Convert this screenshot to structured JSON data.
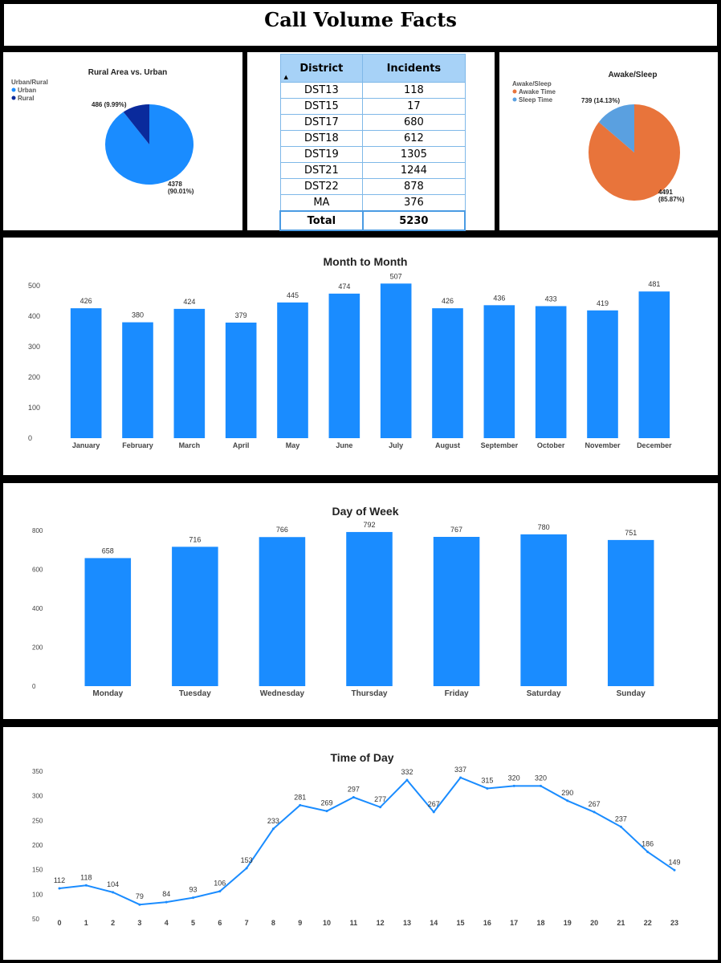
{
  "page": {
    "title": "Call Volume Facts"
  },
  "colors": {
    "bar": "#1a8cff",
    "urban": "#1a8cff",
    "rural": "#0a2a9c",
    "awake": "#e8743b",
    "sleep": "#5aa0e0",
    "line": "#1a8cff"
  },
  "district_table": {
    "headers": {
      "district": "District",
      "incidents": "Incidents"
    },
    "sort_icon": "sort-ascending-icon",
    "rows": [
      {
        "district": "DST13",
        "incidents": "118"
      },
      {
        "district": "DST15",
        "incidents": "17"
      },
      {
        "district": "DST17",
        "incidents": "680"
      },
      {
        "district": "DST18",
        "incidents": "612"
      },
      {
        "district": "DST19",
        "incidents": "1305"
      },
      {
        "district": "DST21",
        "incidents": "1244"
      },
      {
        "district": "DST22",
        "incidents": "878"
      },
      {
        "district": "MA",
        "incidents": "376"
      }
    ],
    "total": {
      "label": "Total",
      "value": "5230"
    }
  },
  "chart_data": [
    {
      "id": "rural-urban",
      "type": "pie",
      "title": "Rural Area vs. Urban",
      "legend_title": "Urban/Rural",
      "legend_position": "top-left",
      "slices": [
        {
          "name": "Urban",
          "value": 4378,
          "label_value": "4378",
          "label_pct": "(90.01%)"
        },
        {
          "name": "Rural",
          "value": 486,
          "label_value": "486",
          "label_pct": "(9.99%)"
        }
      ]
    },
    {
      "id": "awake-sleep",
      "type": "pie",
      "title": "Awake/Sleep",
      "legend_title": "Awake/Sleep",
      "legend_position": "top-left",
      "slices": [
        {
          "name": "Awake Time",
          "value": 4491,
          "label_value": "4491",
          "label_pct": "(85.87%)"
        },
        {
          "name": "Sleep Time",
          "value": 739,
          "label_value": "739",
          "label_pct": "(14.13%)"
        }
      ]
    },
    {
      "id": "month",
      "type": "bar",
      "title": "Month to Month",
      "categories": [
        "January",
        "February",
        "March",
        "April",
        "May",
        "June",
        "July",
        "August",
        "September",
        "October",
        "November",
        "December"
      ],
      "values": [
        426,
        380,
        424,
        379,
        445,
        474,
        507,
        426,
        436,
        433,
        419,
        481
      ],
      "ylim": [
        0,
        500
      ],
      "yticks": [
        0,
        100,
        200,
        300,
        400,
        500
      ],
      "grid": false
    },
    {
      "id": "dow",
      "type": "bar",
      "title": "Day of Week",
      "categories": [
        "Monday",
        "Tuesday",
        "Wednesday",
        "Thursday",
        "Friday",
        "Saturday",
        "Sunday"
      ],
      "values": [
        658,
        716,
        766,
        792,
        767,
        780,
        751
      ],
      "ylim": [
        0,
        800
      ],
      "yticks": [
        0,
        200,
        400,
        600,
        800
      ],
      "grid": false
    },
    {
      "id": "tod",
      "type": "line",
      "title": "Time of Day",
      "x": [
        0,
        1,
        2,
        3,
        4,
        5,
        6,
        7,
        8,
        9,
        10,
        11,
        12,
        13,
        14,
        15,
        16,
        17,
        18,
        19,
        20,
        21,
        22,
        23
      ],
      "values": [
        112,
        118,
        104,
        79,
        84,
        93,
        106,
        153,
        233,
        281,
        269,
        297,
        277,
        332,
        267,
        337,
        315,
        320,
        320,
        290,
        267,
        237,
        186,
        149
      ],
      "ylim": [
        50,
        350
      ],
      "yticks": [
        50,
        100,
        150,
        200,
        250,
        300,
        350
      ],
      "grid": false
    }
  ]
}
